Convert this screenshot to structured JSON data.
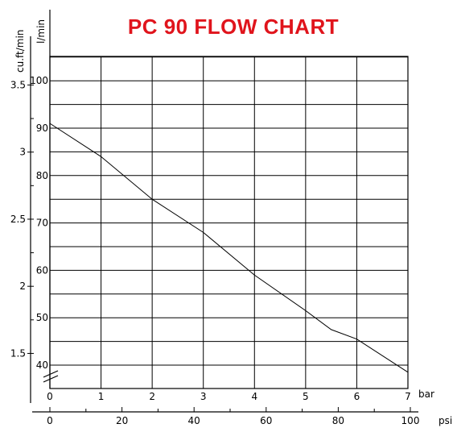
{
  "chart_data": {
    "type": "line",
    "title": "PC 90 FLOW CHART",
    "x_axis_bar": {
      "unit": "bar",
      "ticks": [
        "0",
        "1",
        "2",
        "3",
        "4",
        "5",
        "6",
        "7"
      ],
      "range": [
        0,
        7
      ]
    },
    "x_axis_psi": {
      "unit": "psi",
      "ticks": [
        "0",
        "20",
        "40",
        "60",
        "80",
        "100"
      ],
      "range": [
        0,
        100
      ]
    },
    "y_axis_lpm": {
      "unit": "l/min",
      "ticks": [
        "40",
        "50",
        "60",
        "70",
        "80",
        "90",
        "100"
      ],
      "range": [
        35,
        105
      ]
    },
    "y_axis_cfm": {
      "unit": "cu.ft/min",
      "ticks": [
        "1.5",
        "2",
        "2.5",
        "3",
        "3.5"
      ],
      "tick_values": [
        1.5,
        2,
        2.5,
        3,
        3.5
      ]
    },
    "grid": true,
    "axis_break_marker": true,
    "series": [
      {
        "color": "#000000",
        "points": [
          [
            0,
            91
          ],
          [
            1,
            84
          ],
          [
            2,
            75
          ],
          [
            3,
            68
          ],
          [
            4,
            59
          ],
          [
            5,
            51.5
          ],
          [
            5.5,
            47.5
          ],
          [
            6,
            45.5
          ],
          [
            7,
            38.5
          ]
        ]
      }
    ]
  }
}
